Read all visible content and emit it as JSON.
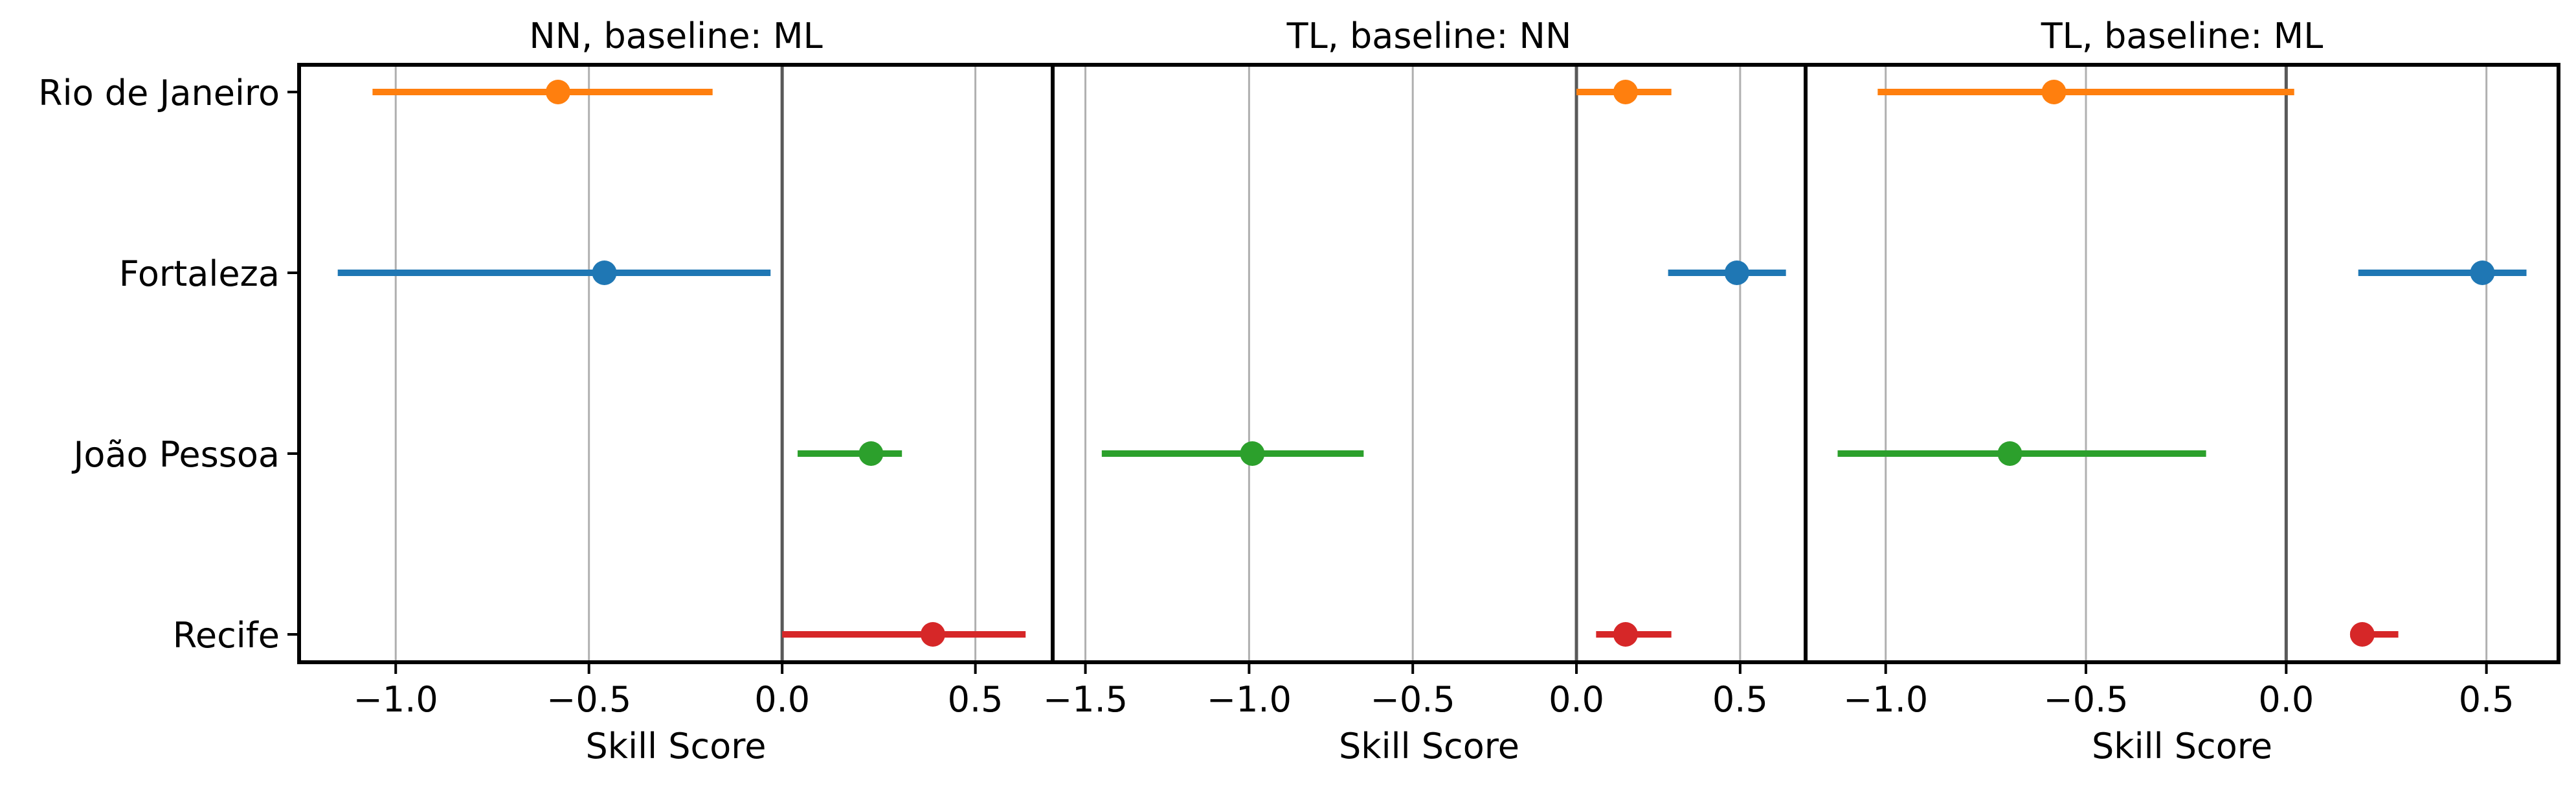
{
  "chart_data": [
    {
      "type": "scatter",
      "title": "NN, baseline: ML",
      "xlabel": "Skill Score",
      "xlim": [
        -1.25,
        0.7
      ],
      "xticks": [
        -1.0,
        -0.5,
        0.0,
        0.5
      ],
      "xtick_labels": [
        "−1.0",
        "−0.5",
        "0.0",
        "0.5"
      ],
      "categories": [
        "Rio de Janeiro",
        "Fortaleza",
        "João Pessoa",
        "Recife"
      ],
      "points": [
        {
          "city": "Rio de Janeiro",
          "x": -0.58,
          "lo": -1.06,
          "hi": -0.18,
          "color": "#ff7f0e"
        },
        {
          "city": "Fortaleza",
          "x": -0.46,
          "lo": -1.15,
          "hi": -0.03,
          "color": "#1f77b4"
        },
        {
          "city": "João Pessoa",
          "x": 0.23,
          "lo": 0.04,
          "hi": 0.31,
          "color": "#2ca02c"
        },
        {
          "city": "Recife",
          "x": 0.39,
          "lo": 0.0,
          "hi": 0.63,
          "color": "#d62728"
        }
      ],
      "grid": true,
      "zero_line": true
    },
    {
      "type": "scatter",
      "title": "TL, baseline: NN",
      "xlabel": "Skill Score",
      "xlim": [
        -1.6,
        0.7
      ],
      "xticks": [
        -1.5,
        -1.0,
        -0.5,
        0.0,
        0.5
      ],
      "xtick_labels": [
        "−1.5",
        "−1.0",
        "−0.5",
        "0.0",
        "0.5"
      ],
      "categories": [
        "Rio de Janeiro",
        "Fortaleza",
        "João Pessoa",
        "Recife"
      ],
      "points": [
        {
          "city": "Rio de Janeiro",
          "x": 0.15,
          "lo": 0.0,
          "hi": 0.29,
          "color": "#ff7f0e"
        },
        {
          "city": "Fortaleza",
          "x": 0.49,
          "lo": 0.28,
          "hi": 0.64,
          "color": "#1f77b4"
        },
        {
          "city": "João Pessoa",
          "x": -0.99,
          "lo": -1.45,
          "hi": -0.65,
          "color": "#2ca02c"
        },
        {
          "city": "Recife",
          "x": 0.15,
          "lo": 0.06,
          "hi": 0.29,
          "color": "#d62728"
        }
      ],
      "grid": true,
      "zero_line": true
    },
    {
      "type": "scatter",
      "title": "TL, baseline: ML",
      "xlabel": "Skill Score",
      "xlim": [
        -1.2,
        0.68
      ],
      "xticks": [
        -1.0,
        -0.5,
        0.0,
        0.5
      ],
      "xtick_labels": [
        "−1.0",
        "−0.5",
        "0.0",
        "0.5"
      ],
      "categories": [
        "Rio de Janeiro",
        "Fortaleza",
        "João Pessoa",
        "Recife"
      ],
      "points": [
        {
          "city": "Rio de Janeiro",
          "x": -0.58,
          "lo": -1.02,
          "hi": 0.02,
          "color": "#ff7f0e"
        },
        {
          "city": "Fortaleza",
          "x": 0.49,
          "lo": 0.18,
          "hi": 0.6,
          "color": "#1f77b4"
        },
        {
          "city": "João Pessoa",
          "x": -0.69,
          "lo": -1.12,
          "hi": -0.2,
          "color": "#2ca02c"
        },
        {
          "city": "Recife",
          "x": 0.19,
          "lo": 0.16,
          "hi": 0.28,
          "color": "#d62728"
        }
      ],
      "grid": true,
      "zero_line": true
    }
  ]
}
